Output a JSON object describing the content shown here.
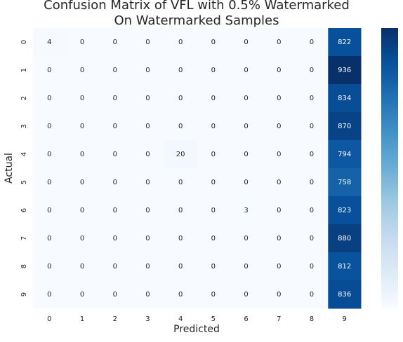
{
  "chart_data": {
    "type": "heatmap",
    "title": [
      "Confusion Matrix of VFL with 0.5% Watermarked",
      "On Watermarked Samples"
    ],
    "x_label": "Predicted",
    "y_label": "Actual",
    "x_categories": [
      "0",
      "1",
      "2",
      "3",
      "4",
      "5",
      "6",
      "7",
      "8",
      "9"
    ],
    "y_categories": [
      "0",
      "1",
      "2",
      "3",
      "4",
      "5",
      "6",
      "7",
      "8",
      "9"
    ],
    "values": [
      [
        4,
        0,
        0,
        0,
        0,
        0,
        0,
        0,
        0,
        822
      ],
      [
        0,
        0,
        0,
        0,
        0,
        0,
        0,
        0,
        0,
        936
      ],
      [
        0,
        0,
        0,
        0,
        0,
        0,
        0,
        0,
        0,
        834
      ],
      [
        0,
        0,
        0,
        0,
        0,
        0,
        0,
        0,
        0,
        870
      ],
      [
        0,
        0,
        0,
        0,
        20,
        0,
        0,
        0,
        0,
        794
      ],
      [
        0,
        0,
        0,
        0,
        0,
        0,
        0,
        0,
        0,
        758
      ],
      [
        0,
        0,
        0,
        0,
        0,
        0,
        3,
        0,
        0,
        823
      ],
      [
        0,
        0,
        0,
        0,
        0,
        0,
        0,
        0,
        0,
        880
      ],
      [
        0,
        0,
        0,
        0,
        0,
        0,
        0,
        0,
        0,
        812
      ],
      [
        0,
        0,
        0,
        0,
        0,
        0,
        0,
        0,
        0,
        836
      ]
    ],
    "colormap": "Blues",
    "clim": [
      0,
      936
    ],
    "colorbar": true
  }
}
